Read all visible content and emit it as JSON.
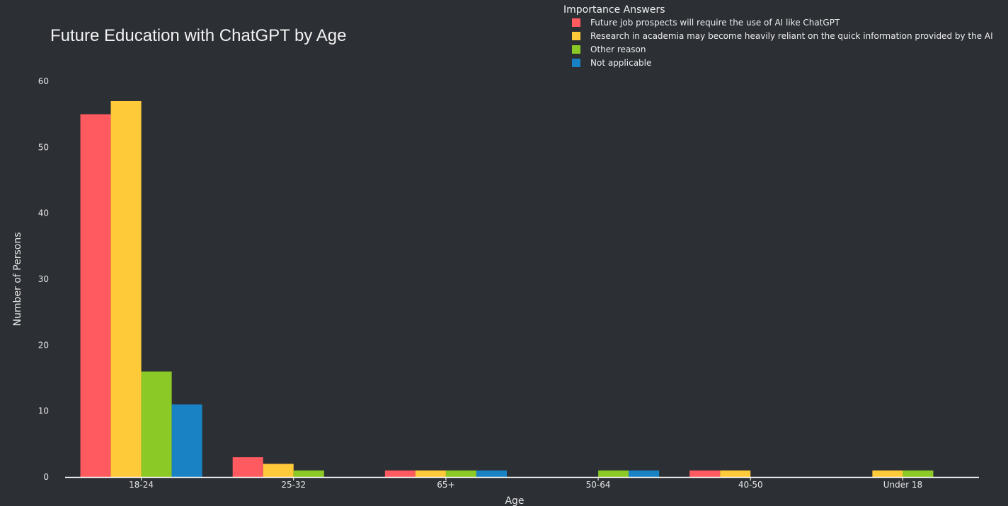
{
  "chart_data": {
    "type": "bar",
    "title": "Future Education with ChatGPT by Age",
    "xlabel": "Age",
    "ylabel": "Number of Persons",
    "categories": [
      "18-24",
      "25-32",
      "65+",
      "50-64",
      "40-50",
      "Under 18"
    ],
    "ylim": [
      0,
      60
    ],
    "yticks": [
      0,
      10,
      20,
      30,
      40,
      50,
      60
    ],
    "grid": false,
    "legend": {
      "title": "Importance Answers",
      "placement": "top-right"
    },
    "series": [
      {
        "name": "Future job prospects will require the use of AI like ChatGPT",
        "color": "#ff5a5f",
        "values": [
          55,
          3,
          1,
          0,
          1,
          0
        ]
      },
      {
        "name": "Research in academia may become heavily reliant on the quick information provided by the AI",
        "color": "#ffca3a",
        "values": [
          57,
          2,
          1,
          0,
          1,
          1
        ]
      },
      {
        "name": "Other reason",
        "color": "#8ac926",
        "values": [
          16,
          1,
          1,
          1,
          0,
          1
        ]
      },
      {
        "name": "Not applicable",
        "color": "#1982c4",
        "values": [
          11,
          0,
          1,
          1,
          0,
          0
        ]
      }
    ]
  }
}
